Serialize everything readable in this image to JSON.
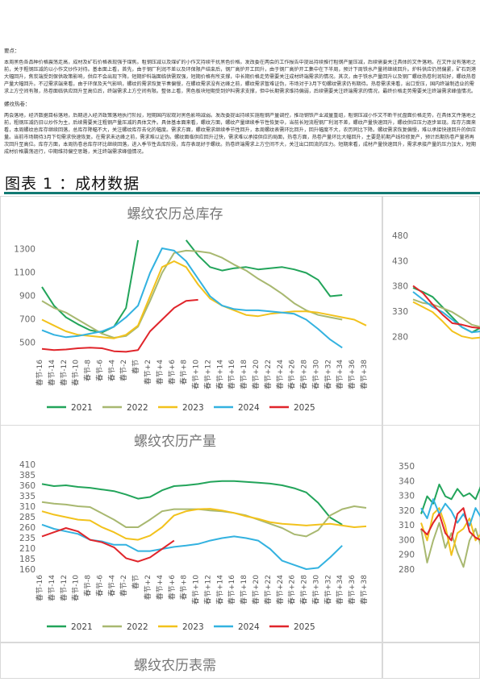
{
  "summary": {
    "heading": "要点：",
    "para1": "本周黑色各品种价格震荡走高，成材及矿石价格表现强于煤焦。粗钢压减以及煤矿的小作文持续干扰黑色价格。发改委在两会的工作报告中提出持续推行粗钢产量压减，后续需要关注具体的文件落地。在文件没有落地之前，关于粗钢压减的以小作文炒作对待。基本面上看，首先，由于钢厂利润不差以及环保限产结束后，钢厂高炉开工回升，由于钢厂高炉开工集中在下半周，预计下周铁水产量将继续回升。炉料供应仍然偏紧，矿石到港大幅回升，焦炭端受到保供政策影响，供应不会出现下降。短期炉料端面临供需双强，短期价格有所支撑，中长期价格走势需要关注成材终端需求的情况。其次，由于铁水产量回升以及钢厂螺纹热卷利润较好，螺纹热卷产量大幅回升。不过需求端来看，由于环保及天气影响，螺纹的需求恢复节奏偏慢，在螺纹需求没有达峰之前，螺纹需求暂难证伪，市场对于3月下旬螺纹需求仍有期待。热卷需求来看，出口受压，国内终端制造业的需求上方空间有限，热卷面临供应回升至高位后，终端需求上方空间有限。整体上看，黑色板块短期受到炉料需求支撑，但中长期需求维持偏弱，后续需要关注终端需求的情况，最终价格走势需要关注终端需求峰值情况。",
    "section_title": "螺纹热卷：",
    "para2": "两会落地，经济数据目标落地，后期进入经济政策落地执行阶段，短期国内宏观对黑色影响减弱。发改委提出持续实施粗钢产量调控，推动钢铁产业减量重组，粗钢压减小作文不断干扰盘面价格走势，在具体文件落地之前，粗钢压减仍旧以炒作为主，后续需要关注粗钢产量压减的具体文件。具体基本面来看，螺纹方面，螺纹产量继续季节性恢复中，当前长短流程钢厂利润不差，螺纹产量快速回升，螺纹供应压力逐步显现。库存方面来看，本周螺纹总库存继续回落，总库存降幅不大，关注螺纹库存去化的幅度。需求方面，螺纹需求继续季节性回升，本周螺纹表需环比回升，回升幅度不大，农历同比下降。螺纹需求恢复偏慢，难以承接快速回升的供应量。当前市场期待3月下旬需求快速恢复。在需求未达峰之前，需求难以证伪。螺纹面临供应回升过快，需求难以承接供应的局面，热卷方面，热卷产量环比大幅回升，主要是前期产线检修复产，预计后期热卷产量将再次回升至高位。库存方面，本周热卷总库存环比继续回落，进入季节性去库阶段，库存表现好于螺纹。热卷终端需求上方空间不大，关注出口回流的压力。短期来看，成材产量快速回升，需求承接产量的压力加大，短期成材价格震荡运行，中期维持偏空思路，关注终端需求峰值情况。"
  },
  "figure": {
    "title": "图表 1 ：成材数据"
  },
  "legend_years": [
    "2021",
    "2022",
    "2023",
    "2024",
    "2025"
  ],
  "colors": {
    "2021": "#22a45a",
    "2022": "#a8b870",
    "2023": "#f2c21c",
    "2024": "#33b2e0",
    "2025": "#e0252b",
    "accent": "#127a73"
  },
  "categories": [
    "春节-16",
    "春节-14",
    "春节-12",
    "春节-10",
    "春节-8",
    "春节-6",
    "春节-4",
    "春节-2",
    "春节",
    "春节+2",
    "春节+4",
    "春节+6",
    "春节+8",
    "春节+10",
    "春节+12",
    "春节+14",
    "春节+16",
    "春节+18",
    "春节+20",
    "春节+22",
    "春节+24",
    "春节+26",
    "春节+28",
    "春节+30",
    "春节+32",
    "春节+34",
    "春节+36",
    "春节+38"
  ],
  "chart_data": [
    {
      "type": "line",
      "title": "螺纹农历总库存",
      "ylim": [
        400,
        1400
      ],
      "yticks": [
        500,
        700,
        900,
        1100,
        1300
      ],
      "series": [
        {
          "name": "2021",
          "values": [
            980,
            820,
            720,
            660,
            610,
            590,
            640,
            800,
            1380,
            null,
            null,
            null,
            1380,
            1250,
            1150,
            1120,
            1140,
            1150,
            1130,
            1140,
            1150,
            1130,
            1100,
            1040,
            900,
            910,
            null,
            null
          ]
        },
        {
          "name": "2022",
          "values": [
            860,
            800,
            760,
            700,
            640,
            580,
            545,
            560,
            640,
            860,
            1100,
            1270,
            1290,
            1285,
            1270,
            1230,
            1170,
            1120,
            1050,
            990,
            920,
            840,
            780,
            740,
            720,
            700,
            null,
            null
          ]
        },
        {
          "name": "2023",
          "values": [
            700,
            650,
            600,
            570,
            560,
            550,
            540,
            570,
            650,
            900,
            1150,
            1200,
            1150,
            1000,
            880,
            820,
            780,
            740,
            730,
            750,
            760,
            770,
            770,
            760,
            740,
            720,
            700,
            650
          ]
        },
        {
          "name": "2024",
          "values": [
            610,
            570,
            550,
            560,
            580,
            600,
            640,
            720,
            820,
            1100,
            1310,
            1290,
            1200,
            1050,
            900,
            820,
            790,
            780,
            780,
            770,
            760,
            750,
            700,
            620,
            530,
            460,
            null,
            null
          ]
        },
        {
          "name": "2025",
          "values": [
            450,
            440,
            445,
            455,
            460,
            455,
            430,
            425,
            440,
            600,
            700,
            800,
            860,
            870,
            null,
            null,
            null,
            null,
            null,
            null,
            null,
            null,
            null,
            null,
            null,
            null,
            null,
            null
          ]
        }
      ]
    },
    {
      "type": "line",
      "title": "螺纹农历产量",
      "ylim": [
        160,
        410
      ],
      "yticks": [
        160,
        185,
        210,
        235,
        260,
        285,
        310,
        335,
        360,
        385,
        410
      ],
      "series": [
        {
          "name": "2021",
          "values": [
            365,
            360,
            362,
            358,
            356,
            352,
            348,
            340,
            330,
            334,
            350,
            360,
            362,
            365,
            370,
            372,
            372,
            370,
            368,
            366,
            362,
            355,
            345,
            320,
            285,
            268,
            null,
            null
          ]
        },
        {
          "name": "2022",
          "values": [
            322,
            318,
            316,
            312,
            310,
            295,
            280,
            262,
            262,
            280,
            300,
            305,
            305,
            305,
            302,
            300,
            296,
            290,
            280,
            270,
            260,
            245,
            240,
            255,
            290,
            305,
            312,
            308
          ]
        },
        {
          "name": "2023",
          "values": [
            300,
            292,
            286,
            280,
            278,
            262,
            250,
            235,
            232,
            242,
            262,
            290,
            300,
            305,
            306,
            302,
            296,
            288,
            282,
            274,
            270,
            268,
            266,
            268,
            270,
            266,
            262,
            264
          ]
        },
        {
          "name": "2024",
          "values": [
            268,
            258,
            252,
            246,
            232,
            228,
            220,
            220,
            205,
            205,
            210,
            215,
            218,
            222,
            230,
            236,
            240,
            236,
            230,
            210,
            182,
            172,
            162,
            165,
            190,
            218,
            null,
            null
          ]
        },
        {
          "name": "2025",
          "values": [
            240,
            250,
            260,
            252,
            232,
            226,
            214,
            188,
            180,
            190,
            210,
            230,
            null,
            null,
            null,
            null,
            null,
            null,
            null,
            null,
            null,
            null,
            null,
            null,
            null,
            null,
            null,
            null
          ]
        }
      ]
    },
    {
      "type": "line",
      "title": "",
      "ylim": [
        260,
        480
      ],
      "yticks": [
        280,
        330,
        380,
        430,
        480
      ],
      "series": [
        {
          "name": "2021",
          "values": [
            378,
            370,
            360,
            340,
            320,
            300,
            290,
            300
          ]
        },
        {
          "name": "2022",
          "values": [
            355,
            348,
            345,
            338,
            330,
            318,
            305,
            300
          ]
        },
        {
          "name": "2023",
          "values": [
            350,
            340,
            330,
            312,
            292,
            282,
            278,
            280
          ]
        },
        {
          "name": "2024",
          "values": [
            370,
            355,
            340,
            330,
            315,
            300,
            290,
            292
          ]
        },
        {
          "name": "2025",
          "values": [
            382,
            368,
            345,
            325,
            308,
            305,
            300,
            298
          ]
        }
      ]
    },
    {
      "type": "line",
      "title": "",
      "ylim": [
        280,
        350
      ],
      "yticks": [
        280,
        290,
        300,
        310,
        320,
        330,
        340,
        350
      ],
      "series": [
        {
          "name": "2021",
          "values": [
            318,
            330,
            325,
            338,
            330,
            328,
            335,
            330,
            332,
            328,
            338
          ]
        },
        {
          "name": "2022",
          "values": [
            308,
            285,
            300,
            312,
            295,
            305,
            292,
            282,
            300,
            308,
            295
          ]
        },
        {
          "name": "2023",
          "values": [
            312,
            300,
            318,
            322,
            310,
            290,
            305,
            308,
            315,
            300,
            305
          ]
        },
        {
          "name": "2024",
          "values": [
            322,
            315,
            328,
            318,
            325,
            320,
            312,
            318,
            310,
            322,
            315
          ]
        },
        {
          "name": "2025",
          "values": [
            308,
            304,
            312,
            318,
            305,
            300,
            318,
            322,
            306,
            302,
            300
          ]
        }
      ]
    },
    {
      "type": "line",
      "title": "螺纹农历表需",
      "series": []
    }
  ]
}
